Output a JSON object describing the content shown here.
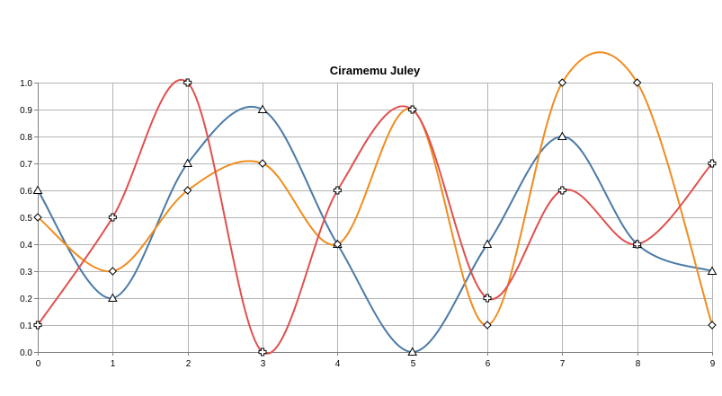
{
  "chart_data": {
    "type": "line",
    "title": "Ciramemu Juley",
    "xlabel": "",
    "ylabel": "",
    "x": [
      0,
      1,
      2,
      3,
      4,
      5,
      6,
      7,
      8,
      9
    ],
    "x_tick_labels": [
      "0",
      "1",
      "2",
      "3",
      "4",
      "5",
      "6",
      "7",
      "8",
      "9"
    ],
    "y_tick_labels": [
      "0.0",
      "0.1",
      "0.2",
      "0.3",
      "0.4",
      "0.5",
      "0.6",
      "0.7",
      "0.8",
      "0.9",
      "1.0"
    ],
    "xlim": [
      0,
      9
    ],
    "ylim": [
      0,
      1
    ],
    "grid": true,
    "legend": "none",
    "smooth": true,
    "series": [
      {
        "color": "#4a7aa7",
        "marker": "triangle",
        "values": [
          0.6,
          0.2,
          0.7,
          0.9,
          0.4,
          0.0,
          0.4,
          0.8,
          0.4,
          0.3
        ]
      },
      {
        "color": "#f08c1e",
        "marker": "diamond",
        "values": [
          0.5,
          0.3,
          0.6,
          0.7,
          0.4,
          0.9,
          0.1,
          1.0,
          1.0,
          0.1
        ]
      },
      {
        "color": "#e0504f",
        "marker": "cross",
        "values": [
          0.1,
          0.5,
          1.0,
          0.0,
          0.6,
          0.9,
          0.2,
          0.6,
          0.4,
          0.7
        ]
      }
    ]
  }
}
